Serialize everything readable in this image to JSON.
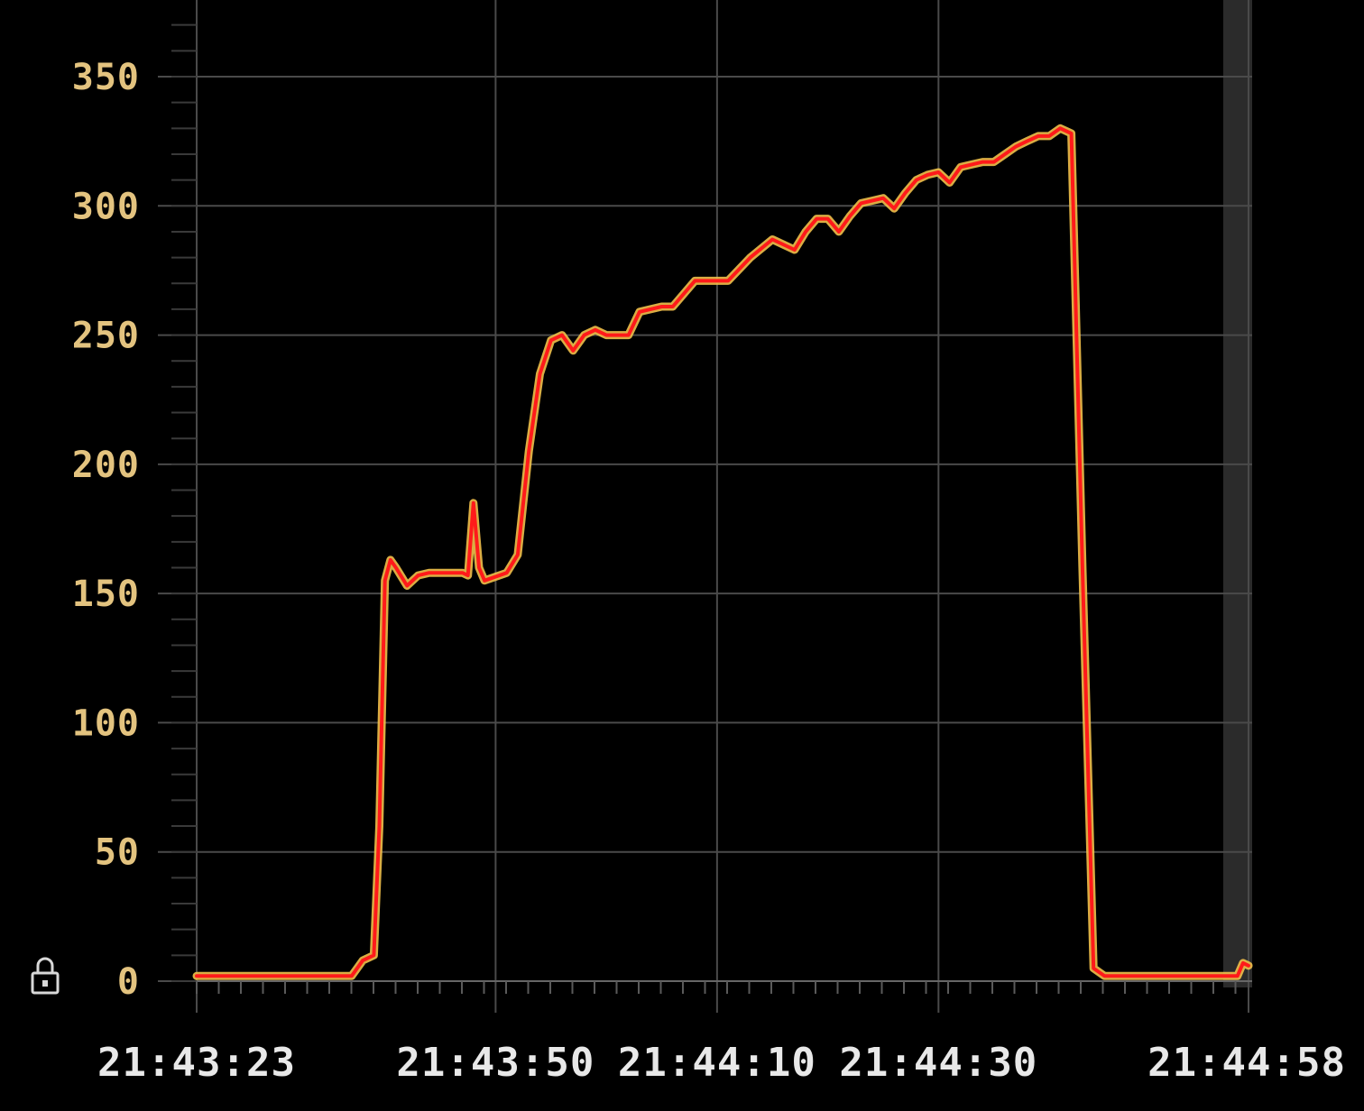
{
  "colors": {
    "background": "#000000",
    "grid": "#4a4a4a",
    "y_tick_label": "#e3c37f",
    "x_tick_label": "#e8e8e8",
    "series_line": "#ff1a1a",
    "series_glow": "#f2c04a",
    "shaded_band": "#2b2b2b",
    "lock_icon": "#d8d8d8"
  },
  "icons": {
    "lock": "lock-icon"
  },
  "chart_data": {
    "type": "line",
    "ylim": [
      0,
      350
    ],
    "y_ticks": [
      0,
      50,
      100,
      150,
      200,
      250,
      300,
      350
    ],
    "y_tick_labels": [
      "0",
      "50",
      "100",
      "150",
      "200",
      "250",
      "300",
      "350"
    ],
    "x_tick_labels": [
      {
        "time": "21:43:23",
        "label": "21:43:23"
      },
      {
        "time": "21:43:50",
        "label": "21:43:50"
      },
      {
        "time": "21:44:10",
        "label": "21:44:10"
      },
      {
        "time": "21:44:30",
        "label": "21:44:30"
      },
      {
        "time": "21:44:58",
        "label": "21:44:58"
      }
    ],
    "grid": true,
    "series": [
      {
        "x": [
          "21:43:23",
          "21:43:37",
          "21:43:38",
          "21:43:39",
          "21:43:39.5",
          "21:43:40",
          "21:43:40.5",
          "21:43:41",
          "21:43:42",
          "21:43:43",
          "21:43:44",
          "21:43:47",
          "21:43:47.5",
          "21:43:48",
          "21:43:48.5",
          "21:43:49",
          "21:43:51",
          "21:43:52",
          "21:43:53",
          "21:43:54",
          "21:43:55",
          "21:43:56",
          "21:43:57",
          "21:43:58",
          "21:43:59",
          "21:44:00",
          "21:44:02",
          "21:44:03",
          "21:44:05",
          "21:44:06",
          "21:44:08",
          "21:44:09",
          "21:44:11",
          "21:44:13",
          "21:44:15",
          "21:44:17",
          "21:44:18",
          "21:44:19",
          "21:44:20",
          "21:44:21",
          "21:44:22",
          "21:44:23",
          "21:44:24",
          "21:44:25",
          "21:44:26",
          "21:44:27",
          "21:44:28",
          "21:44:29",
          "21:44:30",
          "21:44:31",
          "21:44:32",
          "21:44:33",
          "21:44:34",
          "21:44:35",
          "21:44:36",
          "21:44:37",
          "21:44:38",
          "21:44:39",
          "21:44:40",
          "21:44:41",
          "21:44:42",
          "21:44:43",
          "21:44:44",
          "21:44:45",
          "21:44:45.5",
          "21:44:46",
          "21:44:46.5",
          "21:44:47",
          "21:44:48",
          "21:44:57",
          "21:44:57.5",
          "21:44:58"
        ],
        "y": [
          2,
          2,
          8,
          10,
          60,
          155,
          163,
          160,
          153,
          157,
          158,
          158,
          157,
          185,
          160,
          155,
          158,
          165,
          205,
          235,
          248,
          250,
          244,
          250,
          252,
          250,
          250,
          259,
          261,
          261,
          271,
          271,
          271,
          280,
          287,
          283,
          290,
          295,
          295,
          290,
          296,
          301,
          302,
          303,
          299,
          305,
          310,
          312,
          313,
          309,
          315,
          316,
          317,
          317,
          320,
          323,
          325,
          327,
          327,
          330,
          328,
          160,
          5,
          2,
          2,
          2,
          2,
          2,
          2,
          2,
          7,
          6
        ]
      }
    ]
  }
}
